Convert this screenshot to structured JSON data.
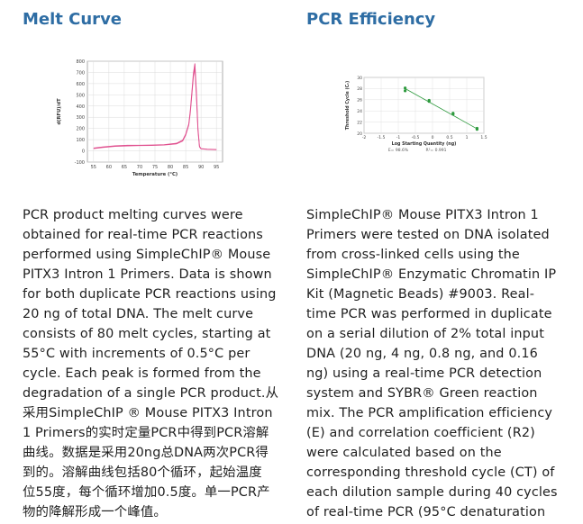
{
  "left": {
    "title": "Melt Curve",
    "paragraph_lines": [
      "PCR product melting curves were",
      "obtained for real-time PCR reactions",
      "performed using SimpleChIP® Mouse",
      "PITX3 Intron 1 Primers. Data is shown",
      "for both duplicate PCR reactions using",
      "20 ng of total DNA. The melt curve",
      "consists of 80 melt cycles, starting at",
      "55°C with increments of 0.5°C per",
      "cycle. Each peak is formed from the",
      "degradation of a single PCR product.从",
      "采用SimpleChIP ® Mouse PITX3 Intron",
      "1 Primers的实时定量PCR中得到PCR溶解",
      "曲线。数据是采用20ng总DNA两次PCR得",
      "到的。溶解曲线包括80个循环，起始温度",
      "位55度，每个循环增加0.5度。单一PCR产",
      "物的降解形成一个峰值。"
    ]
  },
  "right": {
    "title": "PCR Efficiency",
    "paragraph_lines": [
      "SimpleChIP® Mouse PITX3 Intron 1",
      "Primers were tested on DNA isolated",
      "from cross-linked cells using the",
      "SimpleChIP® Enzymatic Chromatin IP",
      "Kit (Magnetic Beads) #9003. Real-",
      "time PCR was performed in duplicate",
      "on a serial dilution of 2% total input",
      "DNA (20 ng, 4 ng, 0.8 ng, and 0.16",
      "ng) using a real-time PCR detection",
      "system and SYBR® Green reaction",
      "mix. The PCR amplification efficiency",
      "(E) and correlation coefficient (R2)",
      "were calculated based on the",
      "corresponding threshold cycle (CT) of",
      "each dilution sample during 40 cycles",
      "of real-time PCR (95°C denaturation"
    ]
  },
  "chart_data": [
    {
      "type": "line",
      "xlabel": "Temperature (°C)",
      "ylabel": "d(RFU)/dT",
      "xlim": [
        53,
        97
      ],
      "ylim": [
        -100,
        800
      ],
      "x_ticks": [
        55,
        60,
        65,
        70,
        75,
        80,
        85,
        90,
        95
      ],
      "y_ticks": [
        -100,
        0,
        100,
        200,
        300,
        400,
        500,
        600,
        700,
        800
      ],
      "grid": true,
      "line_color": "#e0508f",
      "series": [
        {
          "x": [
            55,
            58,
            62,
            66,
            70,
            74,
            78,
            82,
            84,
            85,
            86,
            86.5,
            87,
            87.5,
            88,
            88.5,
            89,
            89.5,
            90,
            92,
            95
          ],
          "values": [
            25,
            35,
            45,
            50,
            50,
            52,
            55,
            68,
            95,
            150,
            240,
            360,
            520,
            690,
            780,
            520,
            200,
            40,
            20,
            15,
            12
          ]
        },
        {
          "x": [
            55,
            58,
            62,
            66,
            70,
            74,
            78,
            82,
            84,
            85,
            86,
            86.5,
            87,
            87.5,
            88,
            88.5,
            89,
            89.5,
            90,
            92,
            95
          ],
          "values": [
            20,
            30,
            40,
            45,
            47,
            48,
            52,
            62,
            88,
            140,
            230,
            340,
            500,
            660,
            740,
            480,
            180,
            35,
            18,
            13,
            10
          ]
        }
      ]
    },
    {
      "type": "scatter",
      "xlabel": "Log Starting Quantity (ng)",
      "ylabel": "Threshold Cycle (Cₜ)",
      "xlim": [
        -2,
        1.5
      ],
      "ylim": [
        20,
        30
      ],
      "x_ticks": [
        -2,
        -1.5,
        -1,
        -0.5,
        0,
        0.5,
        1,
        1.5
      ],
      "x_tick_labels": [
        "-2",
        "-1.5",
        "-1",
        "-0.5",
        "0",
        "0.5",
        "1",
        "1.5"
      ],
      "y_ticks": [
        20,
        22,
        24,
        26,
        28,
        30
      ],
      "grid": true,
      "point_color": "#2e9a3e",
      "points": {
        "x": [
          -0.8,
          -0.8,
          -0.1,
          -0.1,
          0.6,
          0.6,
          1.3,
          1.3
        ],
        "values": [
          28.1,
          27.6,
          25.9,
          25.7,
          23.6,
          23.4,
          20.9,
          20.7
        ]
      },
      "fit_line": {
        "x": [
          -0.8,
          1.3
        ],
        "values": [
          28.0,
          20.8
        ]
      },
      "annotations": [
        "E= 98.6%",
        "R²= 0.991"
      ]
    }
  ]
}
